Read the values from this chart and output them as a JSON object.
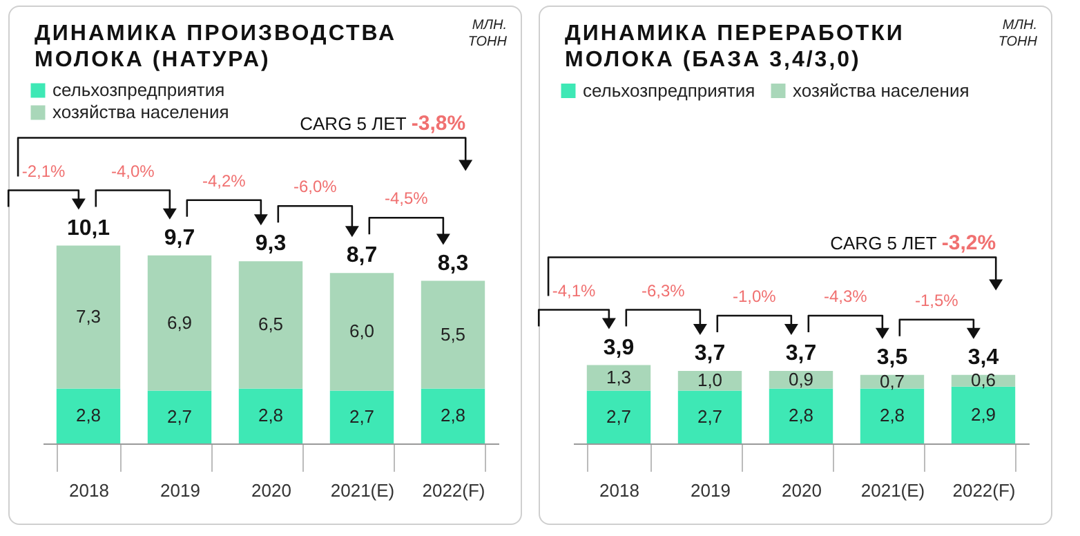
{
  "chart_data": [
    {
      "type": "bar",
      "title": "ДИНАМИКА ПРОИЗВОДСТВА МОЛОКА (НАТУРА)",
      "subtitle": "МЛН. ТОНН",
      "stacked": true,
      "legend": "top left",
      "grid": false,
      "categories": [
        "2018",
        "2019",
        "2020",
        "2021(E)",
        "2022(F)"
      ],
      "series": [
        {
          "name": "сельхозпредприятия",
          "color": "#3ee8b5",
          "values": [
            2.8,
            2.7,
            2.8,
            2.7,
            2.8
          ],
          "value_labels": [
            "2,8",
            "2,7",
            "2,8",
            "2,7",
            "2,8"
          ]
        },
        {
          "name": "хозяйства населения",
          "color": "#a9d7b9",
          "values": [
            7.3,
            6.9,
            6.5,
            6.0,
            5.5
          ],
          "value_labels": [
            "7,3",
            "6,9",
            "6,5",
            "6,0",
            "5,5"
          ]
        }
      ],
      "totals": [
        "10,1",
        "9,7",
        "9,3",
        "8,7",
        "8,3"
      ],
      "annotations": [
        "-2,1%",
        "-4,0%",
        "-4,2%",
        "-6,0%",
        "-4,5%",
        "CARG 5 ЛЕТ -3,8%"
      ]
    },
    {
      "type": "bar",
      "title": "ДИНАМИКА ПЕРЕРАБОТКИ МОЛОКА (БАЗА 3,4/3,0)",
      "subtitle": "МЛН. ТОНН",
      "stacked": true,
      "legend": "top",
      "grid": false,
      "categories": [
        "2018",
        "2019",
        "2020",
        "2021(E)",
        "2022(F)"
      ],
      "series": [
        {
          "name": "сельхозпредприятия",
          "color": "#3ee8b5",
          "values": [
            2.7,
            2.7,
            2.8,
            2.8,
            2.9
          ],
          "value_labels": [
            "2,7",
            "2,7",
            "2,8",
            "2,8",
            "2,9"
          ]
        },
        {
          "name": "хозяйства населения",
          "color": "#a9d7b9",
          "values": [
            1.3,
            1.0,
            0.9,
            0.7,
            0.6
          ],
          "value_labels": [
            "1,3",
            "1,0",
            "0,9",
            "0,7",
            "0,6"
          ]
        }
      ],
      "totals": [
        "3,9",
        "3,7",
        "3,7",
        "3,5",
        "3,4"
      ],
      "annotations": [
        "-4,1%",
        "-6,3%",
        "-1,0%",
        "-4,3%",
        "-1,5%",
        "CARG 5 ЛЕТ -3,2%"
      ]
    }
  ]
}
